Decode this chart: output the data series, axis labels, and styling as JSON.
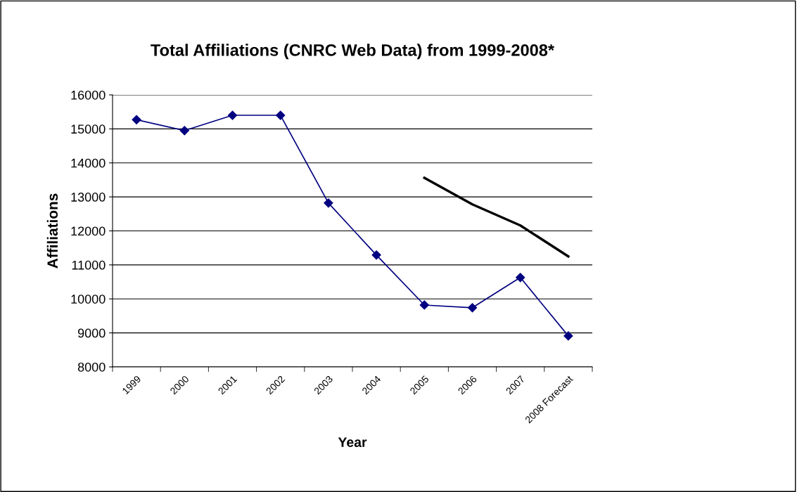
{
  "chart_data": {
    "type": "line",
    "title": "Total Affiliations (CNRC Web Data) from 1999-2008*",
    "xlabel": "Year",
    "ylabel": "Affiliations",
    "categories": [
      "1999",
      "2000",
      "2001",
      "2002",
      "2003",
      "2004",
      "2005",
      "2006",
      "2007",
      "2008 Forecast"
    ],
    "series": [
      {
        "color": "#000080",
        "marker": "diamond",
        "values": [
          15270,
          14950,
          15400,
          15400,
          12820,
          11290,
          9820,
          9740,
          10630,
          8910
        ]
      },
      {
        "color": "#000000",
        "marker": "none",
        "values": [
          null,
          null,
          null,
          null,
          null,
          null,
          13560,
          12780,
          12160,
          11250
        ]
      }
    ],
    "ylim": [
      8000,
      16000
    ],
    "yticks": [
      8000,
      9000,
      10000,
      11000,
      12000,
      13000,
      14000,
      15000,
      16000
    ],
    "grid": "y",
    "legend": false
  }
}
